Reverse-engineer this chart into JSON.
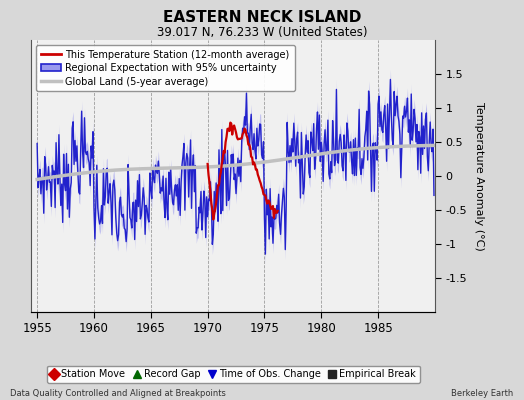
{
  "title": "EASTERN NECK ISLAND",
  "subtitle": "39.017 N, 76.233 W (United States)",
  "ylabel": "Temperature Anomaly (°C)",
  "footer_left": "Data Quality Controlled and Aligned at Breakpoints",
  "footer_right": "Berkeley Earth",
  "xlim": [
    1954.5,
    1990.0
  ],
  "ylim": [
    -2,
    2
  ],
  "yticks": [
    -1.5,
    -1,
    -0.5,
    0,
    0.5,
    1,
    1.5
  ],
  "ytick_labels": [
    "-1.5",
    "-1",
    "-0.5",
    "0",
    "0.5",
    "1",
    "1.5"
  ],
  "xticks": [
    1955,
    1960,
    1965,
    1970,
    1975,
    1980,
    1985
  ],
  "background_color": "#d8d8d8",
  "plot_bg_color": "#f0f0f0",
  "regional_color": "#2222cc",
  "regional_fill_color": "#9999ee",
  "station_color": "#cc0000",
  "global_color": "#c0c0c0",
  "global_lw": 2.5,
  "legend_items": [
    "This Temperature Station (12-month average)",
    "Regional Expectation with 95% uncertainty",
    "Global Land (5-year average)"
  ],
  "bottom_legend": [
    {
      "marker": "D",
      "color": "#cc0000",
      "label": "Station Move"
    },
    {
      "marker": "^",
      "color": "#006600",
      "label": "Record Gap"
    },
    {
      "marker": "v",
      "color": "#0000cc",
      "label": "Time of Obs. Change"
    },
    {
      "marker": "s",
      "color": "#222222",
      "label": "Empirical Break"
    }
  ]
}
